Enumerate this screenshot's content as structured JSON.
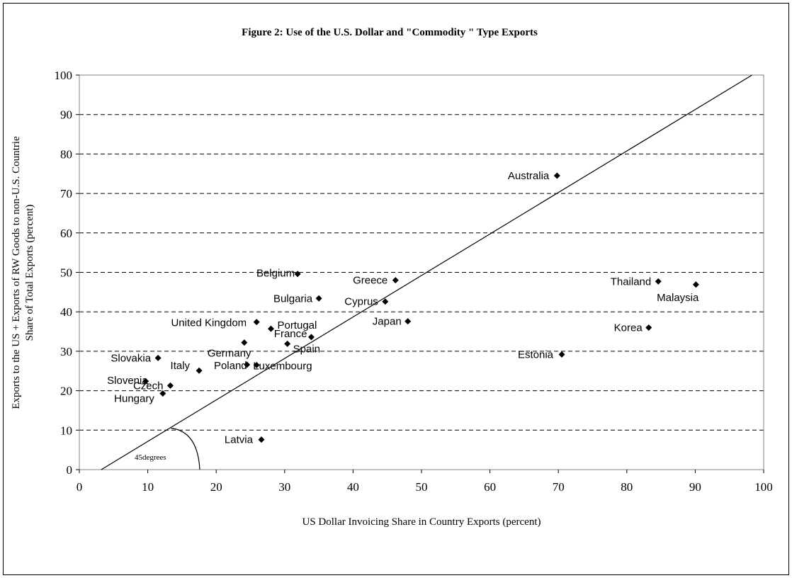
{
  "chart_data": {
    "type": "scatter",
    "title": "Figure 2: Use of the U.S. Dollar and \"Commodity \" Type Exports",
    "xlabel": "US Dollar Invoicing Share in Country Exports (percent)",
    "ylabel_line1": "Exports to the US + Exports of RW Goods to non-U.S. Countrie",
    "ylabel_line2": "Share of Total Exports (percent)",
    "xlim": [
      0,
      100
    ],
    "ylim": [
      0,
      100
    ],
    "xticks": [
      0,
      10,
      20,
      30,
      40,
      50,
      60,
      70,
      80,
      90,
      100
    ],
    "yticks": [
      0,
      10,
      20,
      30,
      40,
      50,
      60,
      70,
      80,
      90,
      100
    ],
    "grid": "horizontal dashed",
    "marker": "diamond",
    "points": [
      {
        "label": "Australia",
        "x": 69.8,
        "y": 74.5
      },
      {
        "label": "Belgium",
        "x": 31.9,
        "y": 49.6
      },
      {
        "label": "Greece",
        "x": 46.2,
        "y": 48.0
      },
      {
        "label": "Thailand",
        "x": 84.6,
        "y": 47.7
      },
      {
        "label": "Malaysia",
        "x": 90.1,
        "y": 46.9
      },
      {
        "label": "Bulgaria",
        "x": 35.0,
        "y": 43.4
      },
      {
        "label": "Cyprus",
        "x": 44.7,
        "y": 42.6
      },
      {
        "label": "Japan",
        "x": 48.0,
        "y": 37.6
      },
      {
        "label": "United Kingdom",
        "x": 25.9,
        "y": 37.4
      },
      {
        "label": "Portugal",
        "x": 28.0,
        "y": 35.7
      },
      {
        "label": "Korea",
        "x": 83.2,
        "y": 36.0
      },
      {
        "label": "France",
        "x": 33.9,
        "y": 33.6
      },
      {
        "label": "Spain",
        "x": 30.4,
        "y": 31.9
      },
      {
        "label": "Germany",
        "x": 24.1,
        "y": 32.2
      },
      {
        "label": "Estonia",
        "x": 70.5,
        "y": 29.2
      },
      {
        "label": "Slovakia",
        "x": 11.5,
        "y": 28.3
      },
      {
        "label": "Poland",
        "x": 24.5,
        "y": 26.6
      },
      {
        "label": "Luxembourg",
        "x": 25.9,
        "y": 26.5
      },
      {
        "label": "Italy",
        "x": 17.5,
        "y": 25.1
      },
      {
        "label": "Slovenia",
        "x": 9.7,
        "y": 22.4
      },
      {
        "label": "Czech",
        "x": 13.3,
        "y": 21.3
      },
      {
        "label": "Hungary",
        "x": 12.2,
        "y": 19.3
      },
      {
        "label": "Latvia",
        "x": 26.6,
        "y": 7.6
      }
    ],
    "reference_line": {
      "from": [
        3.2,
        0
      ],
      "to": [
        98.3,
        100
      ]
    },
    "annotation": "45degrees"
  }
}
